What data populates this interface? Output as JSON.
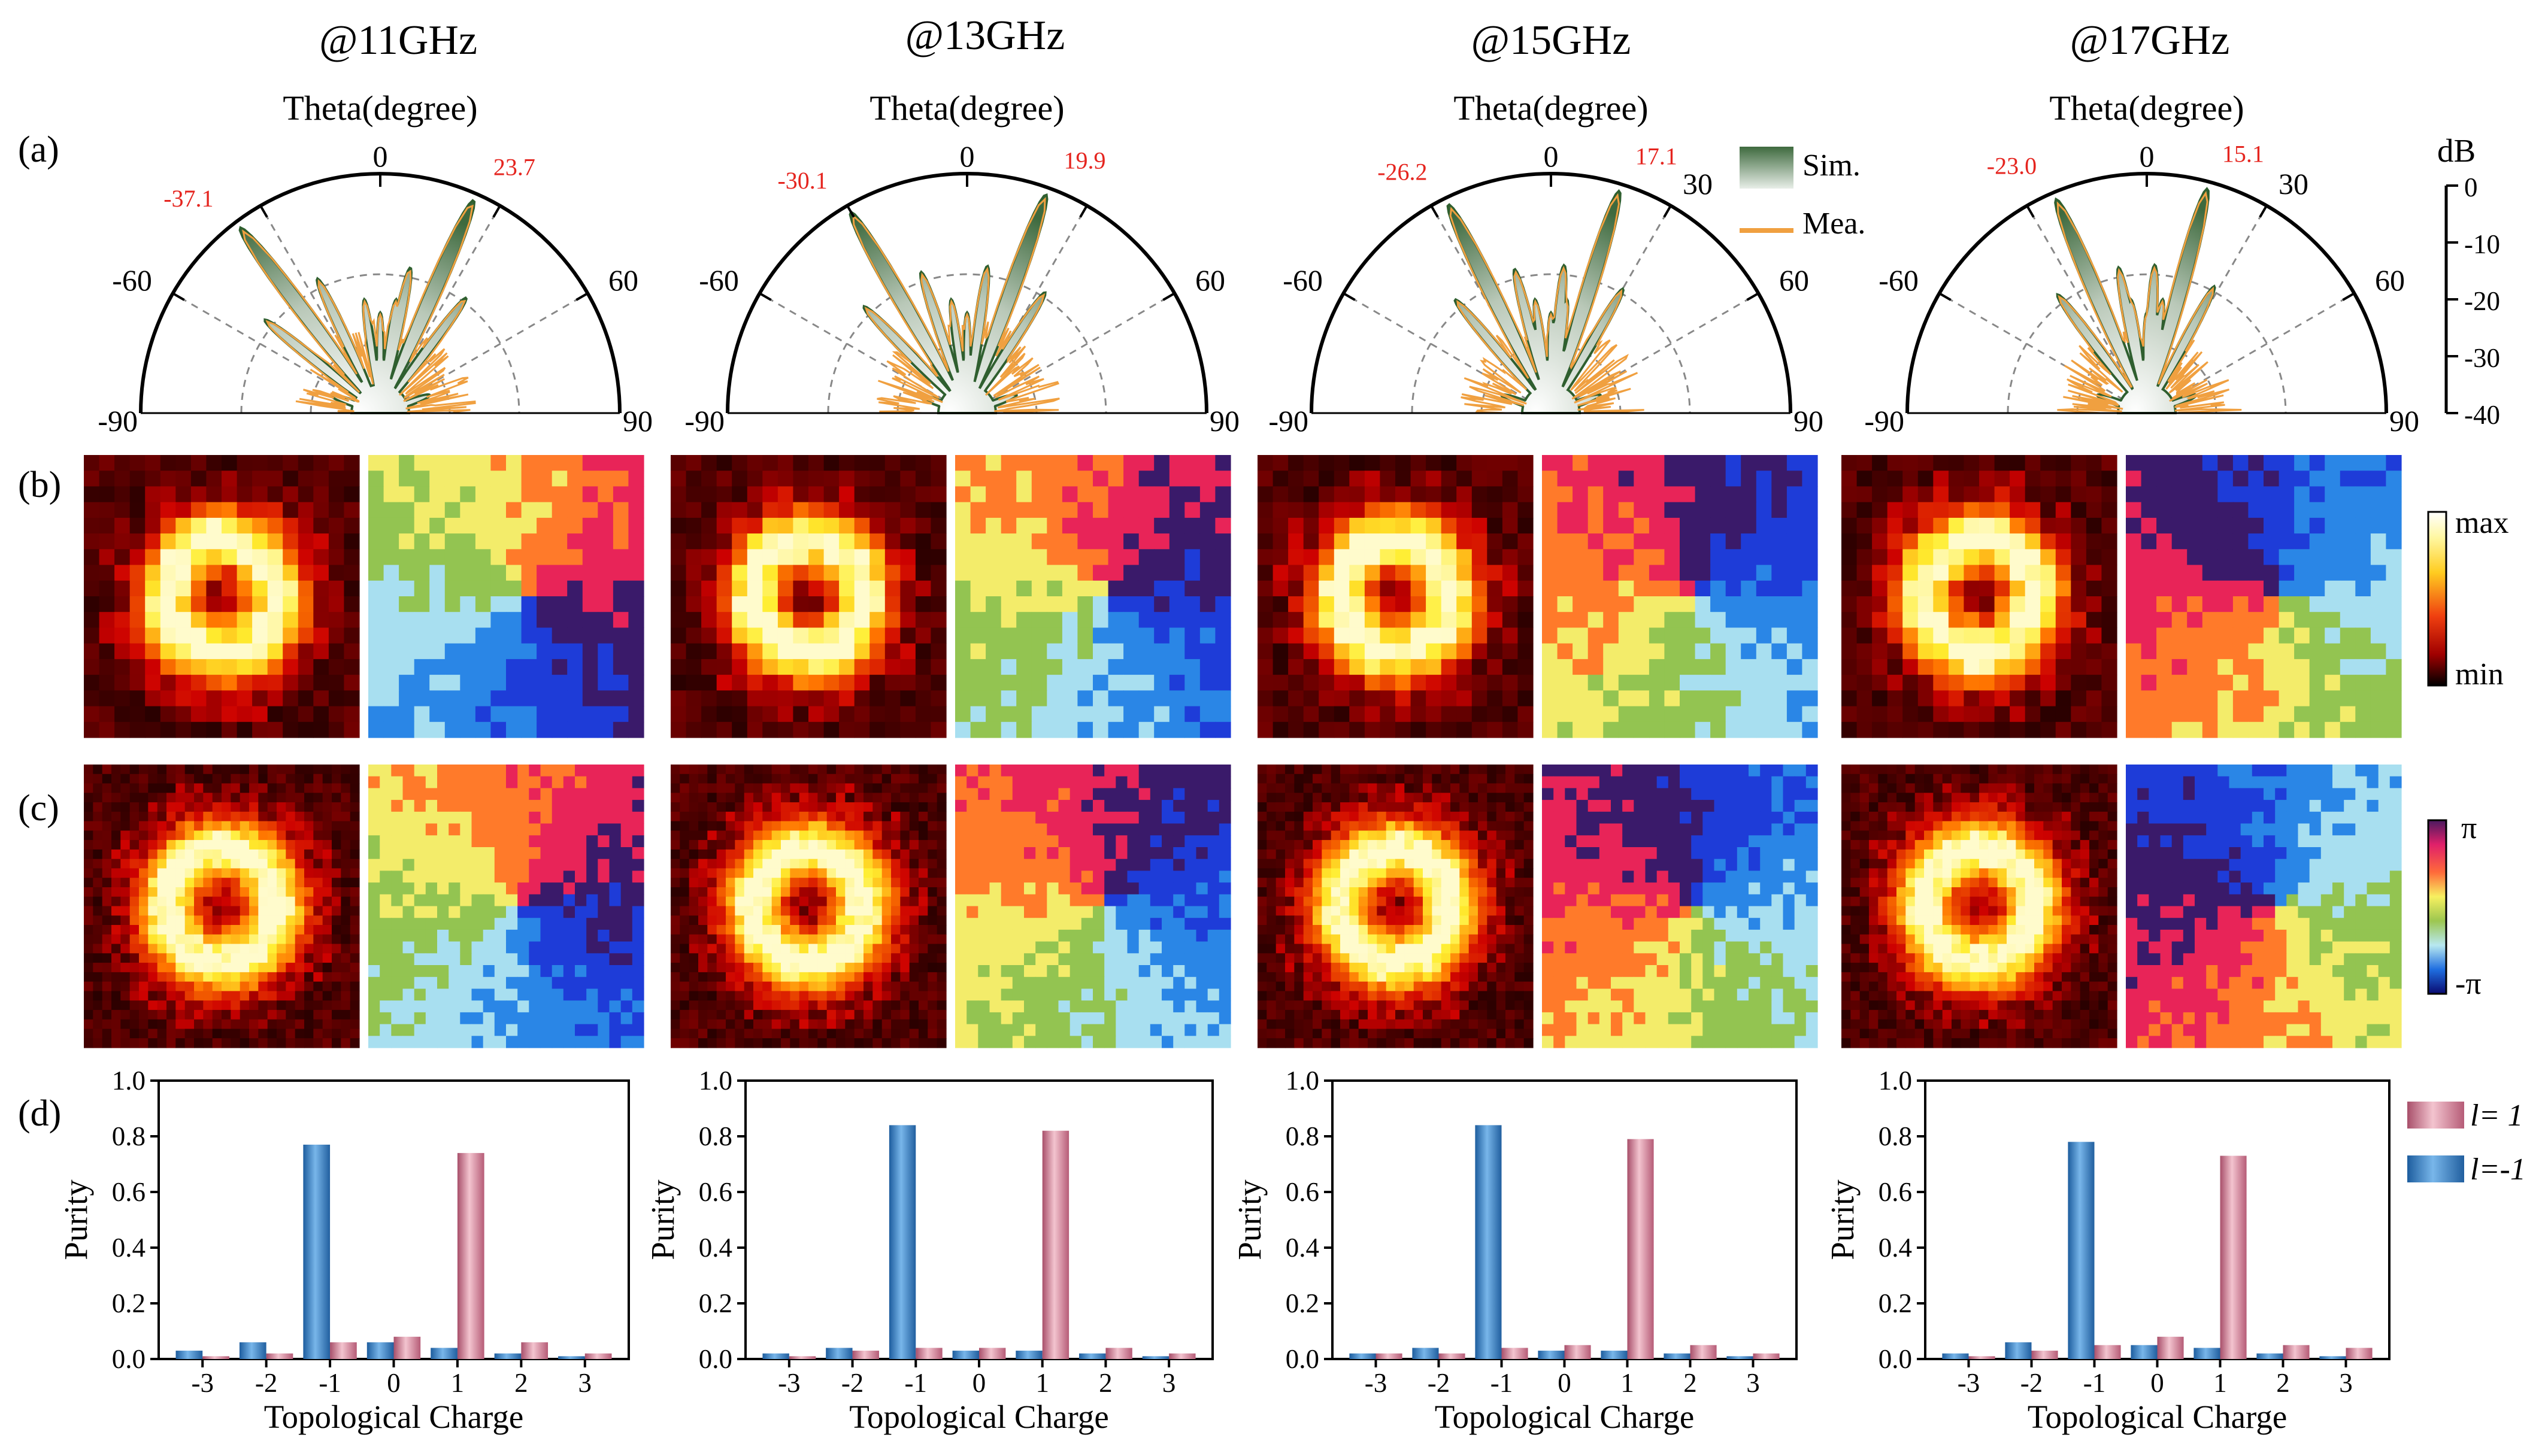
{
  "frequencies": [
    "@11GHz",
    "@13GHz",
    "@15GHz",
    "@17GHz"
  ],
  "panel_labels": [
    "(a)",
    "(b)",
    "(c)",
    "(d)"
  ],
  "polar": {
    "title": "Theta(degree)",
    "angle_ticks": [
      [
        "-90",
        "-60",
        "0",
        "60",
        "90"
      ],
      [
        "-90",
        "-60",
        "0",
        "60",
        "90"
      ],
      [
        "-90",
        "-60",
        "0",
        "30",
        "60",
        "90"
      ],
      [
        "-90",
        "-60",
        "0",
        "30",
        "60",
        "90"
      ]
    ],
    "peaks": [
      {
        "neg": "-37.1",
        "pos": "23.7",
        "neg_deg": -37.1,
        "pos_deg": 23.7
      },
      {
        "neg": "-30.1",
        "pos": "19.9",
        "neg_deg": -30.1,
        "pos_deg": 19.9
      },
      {
        "neg": "-26.2",
        "pos": "17.1",
        "neg_deg": -26.2,
        "pos_deg": 17.1
      },
      {
        "neg": "-23.0",
        "pos": "15.1",
        "neg_deg": -23.0,
        "pos_deg": 15.1
      }
    ],
    "legend": {
      "sim": "Sim.",
      "mea": "Mea."
    },
    "db_scale": {
      "title": "dB",
      "ticks": [
        "0",
        "-10",
        "-20",
        "-30",
        "-40"
      ]
    },
    "sim_color": "#2f5f2f",
    "mea_color": "#f0a040"
  },
  "amp_colorbar": {
    "max": "max",
    "min": "min"
  },
  "phase_colorbar": {
    "max": "π",
    "min": "-π"
  },
  "chart_data": {
    "type": "bar",
    "title": "",
    "xlabel": "Topological Charge",
    "ylabel": "Purity",
    "ylim": [
      0,
      1.0
    ],
    "yticks": [
      "0.0",
      "0.2",
      "0.4",
      "0.6",
      "0.8",
      "1.0"
    ],
    "categories": [
      "-3",
      "-2",
      "-1",
      "0",
      "1",
      "2",
      "3"
    ],
    "legend": [
      "l= 1",
      "l=-1"
    ],
    "panels": [
      {
        "name": "@11GHz",
        "series": [
          {
            "name": "l= 1",
            "values": [
              0.01,
              0.02,
              0.06,
              0.08,
              0.74,
              0.06,
              0.02
            ]
          },
          {
            "name": "l=-1",
            "values": [
              0.03,
              0.06,
              0.77,
              0.06,
              0.04,
              0.02,
              0.01
            ]
          }
        ]
      },
      {
        "name": "@13GHz",
        "series": [
          {
            "name": "l= 1",
            "values": [
              0.01,
              0.03,
              0.04,
              0.04,
              0.82,
              0.04,
              0.02
            ]
          },
          {
            "name": "l=-1",
            "values": [
              0.02,
              0.04,
              0.84,
              0.03,
              0.03,
              0.02,
              0.01
            ]
          }
        ]
      },
      {
        "name": "@15GHz",
        "series": [
          {
            "name": "l= 1",
            "values": [
              0.02,
              0.02,
              0.04,
              0.05,
              0.79,
              0.05,
              0.02
            ]
          },
          {
            "name": "l=-1",
            "values": [
              0.02,
              0.04,
              0.84,
              0.03,
              0.03,
              0.02,
              0.01
            ]
          }
        ]
      },
      {
        "name": "@17GHz",
        "series": [
          {
            "name": "l= 1",
            "values": [
              0.01,
              0.03,
              0.05,
              0.08,
              0.73,
              0.05,
              0.04
            ]
          },
          {
            "name": "l=-1",
            "values": [
              0.02,
              0.06,
              0.78,
              0.05,
              0.04,
              0.02,
              0.01
            ]
          }
        ]
      }
    ]
  }
}
